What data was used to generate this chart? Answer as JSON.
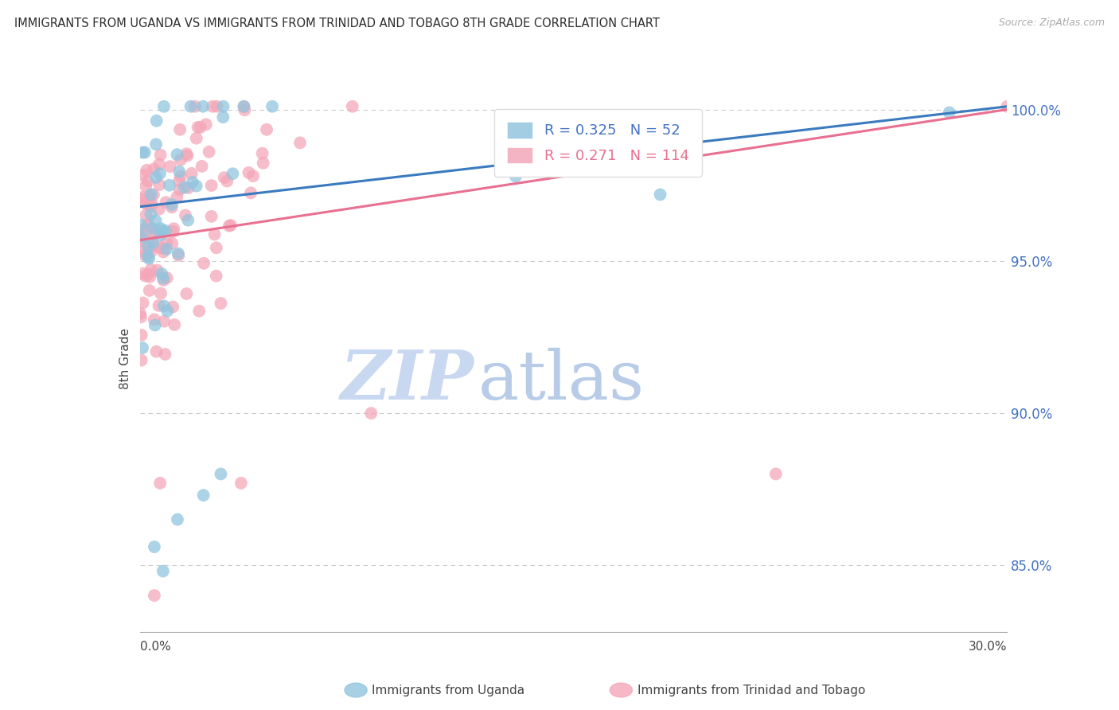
{
  "title": "IMMIGRANTS FROM UGANDA VS IMMIGRANTS FROM TRINIDAD AND TOBAGO 8TH GRADE CORRELATION CHART",
  "source": "Source: ZipAtlas.com",
  "ylabel_label": "8th Grade",
  "xmin": 0.0,
  "xmax": 0.3,
  "ymin": 0.828,
  "ymax": 1.008,
  "uganda_R": 0.325,
  "uganda_N": 52,
  "trinidad_R": 0.271,
  "trinidad_N": 114,
  "blue_color": "#92c5de",
  "pink_color": "#f4a7b9",
  "blue_line_color": "#3a7bbf",
  "pink_line_color": "#e87090",
  "watermark_zip_color": "#c8d8f0",
  "watermark_atlas_color": "#b8cce8",
  "background_color": "#ffffff",
  "title_color": "#2d2d2d",
  "ytick_color": "#4472c4",
  "grid_color": "#cccccc",
  "legend_label_blue": "Immigrants from Uganda",
  "legend_label_pink": "Immigrants from Trinidad and Tobago",
  "legend_R_blue": "#4472c4",
  "legend_N_blue": "#4472c4",
  "legend_R_pink": "#e87090",
  "legend_N_pink": "#e87090"
}
